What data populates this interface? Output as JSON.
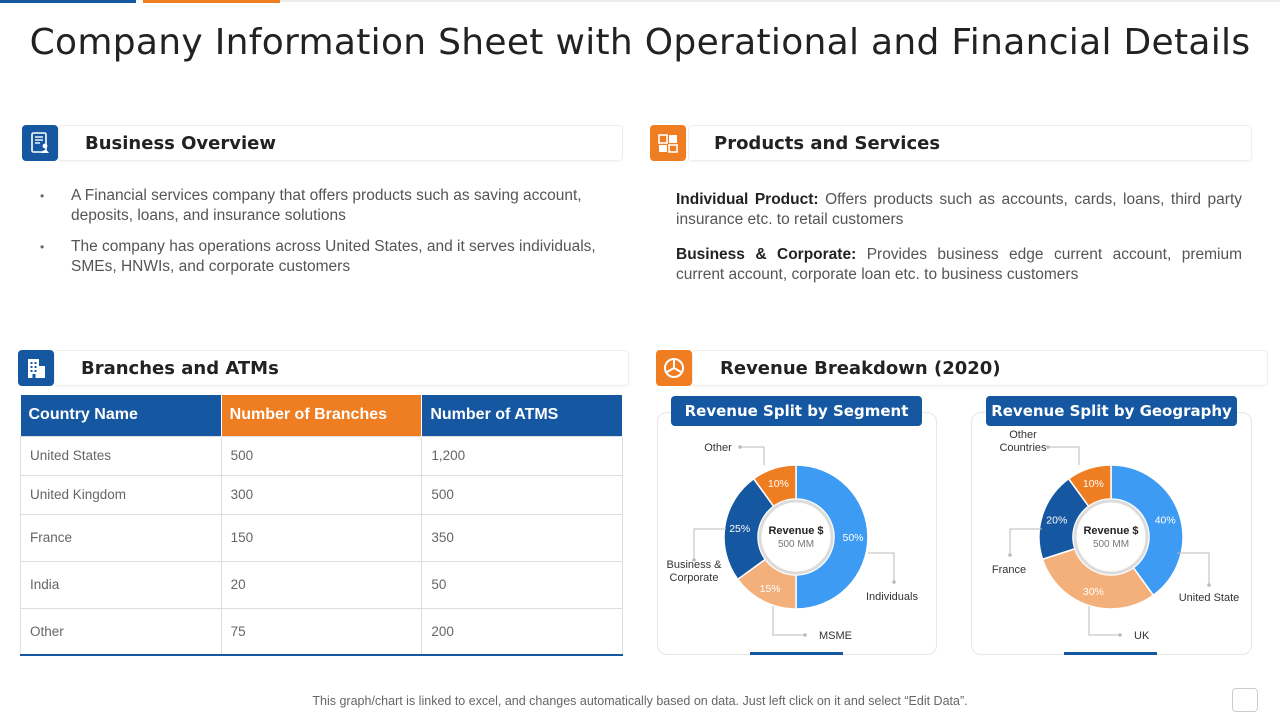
{
  "title": "Company Information Sheet with Operational and Financial Details",
  "colors": {
    "blue": "#1557a0",
    "orange": "#ef7d22",
    "light_blue": "#3d9bf3",
    "light_orange": "#f4b07b",
    "text": "#333333"
  },
  "business_overview": {
    "heading": "Business Overview",
    "icon": "document-user-icon",
    "bullets": [
      "A Financial services company that offers products such as saving account, deposits, loans, and insurance solutions",
      "The company has operations across United States, and it serves individuals, SMEs, HNWIs, and corporate customers"
    ]
  },
  "products_services": {
    "heading": "Products and Services",
    "icon": "products-icon",
    "items": [
      {
        "label": "Individual Product:",
        "text": "Offers products such as accounts, cards, loans, third party insurance etc. to retail customers"
      },
      {
        "label": "Business & Corporate:",
        "text": "Provides business edge current account, premium current account, corporate loan etc. to business customers"
      }
    ]
  },
  "branches": {
    "heading": "Branches and ATMs",
    "icon": "building-icon",
    "columns": [
      "Country Name",
      "Number of Branches",
      "Number of ATMS"
    ],
    "rows": [
      [
        "United States",
        "500",
        "1,200"
      ],
      [
        "United Kingdom",
        "300",
        "500"
      ],
      [
        "France",
        "150",
        "350"
      ],
      [
        "India",
        "20",
        "50"
      ],
      [
        "Other",
        "75",
        "200"
      ]
    ]
  },
  "revenue": {
    "heading": "Revenue Breakdown (2020)",
    "icon": "pie-chart-icon"
  },
  "chart_data": [
    {
      "type": "pie",
      "title": "Revenue Split by Segment",
      "center_label": "Revenue $",
      "center_value": "500 MM",
      "categories": [
        "Individuals",
        "MSME",
        "Business & Corporate",
        "Other"
      ],
      "values": [
        50,
        15,
        25,
        10
      ],
      "value_labels": [
        "50%",
        "15%",
        "25%",
        "10%"
      ],
      "colors": [
        "#3d9bf3",
        "#f4b07b",
        "#1557a0",
        "#ef7d22"
      ]
    },
    {
      "type": "pie",
      "title": "Revenue Split by Geography",
      "center_label": "Revenue $",
      "center_value": "500 MM",
      "categories": [
        "United State",
        "UK",
        "France",
        "Other Countries"
      ],
      "values": [
        40,
        30,
        20,
        10
      ],
      "value_labels": [
        "40%",
        "30%",
        "20%",
        "10%"
      ],
      "colors": [
        "#3d9bf3",
        "#f4b07b",
        "#1557a0",
        "#ef7d22"
      ]
    }
  ],
  "footnote": "This graph/chart is linked to excel, and changes automatically based on data. Just left click on it and select “Edit Data”."
}
